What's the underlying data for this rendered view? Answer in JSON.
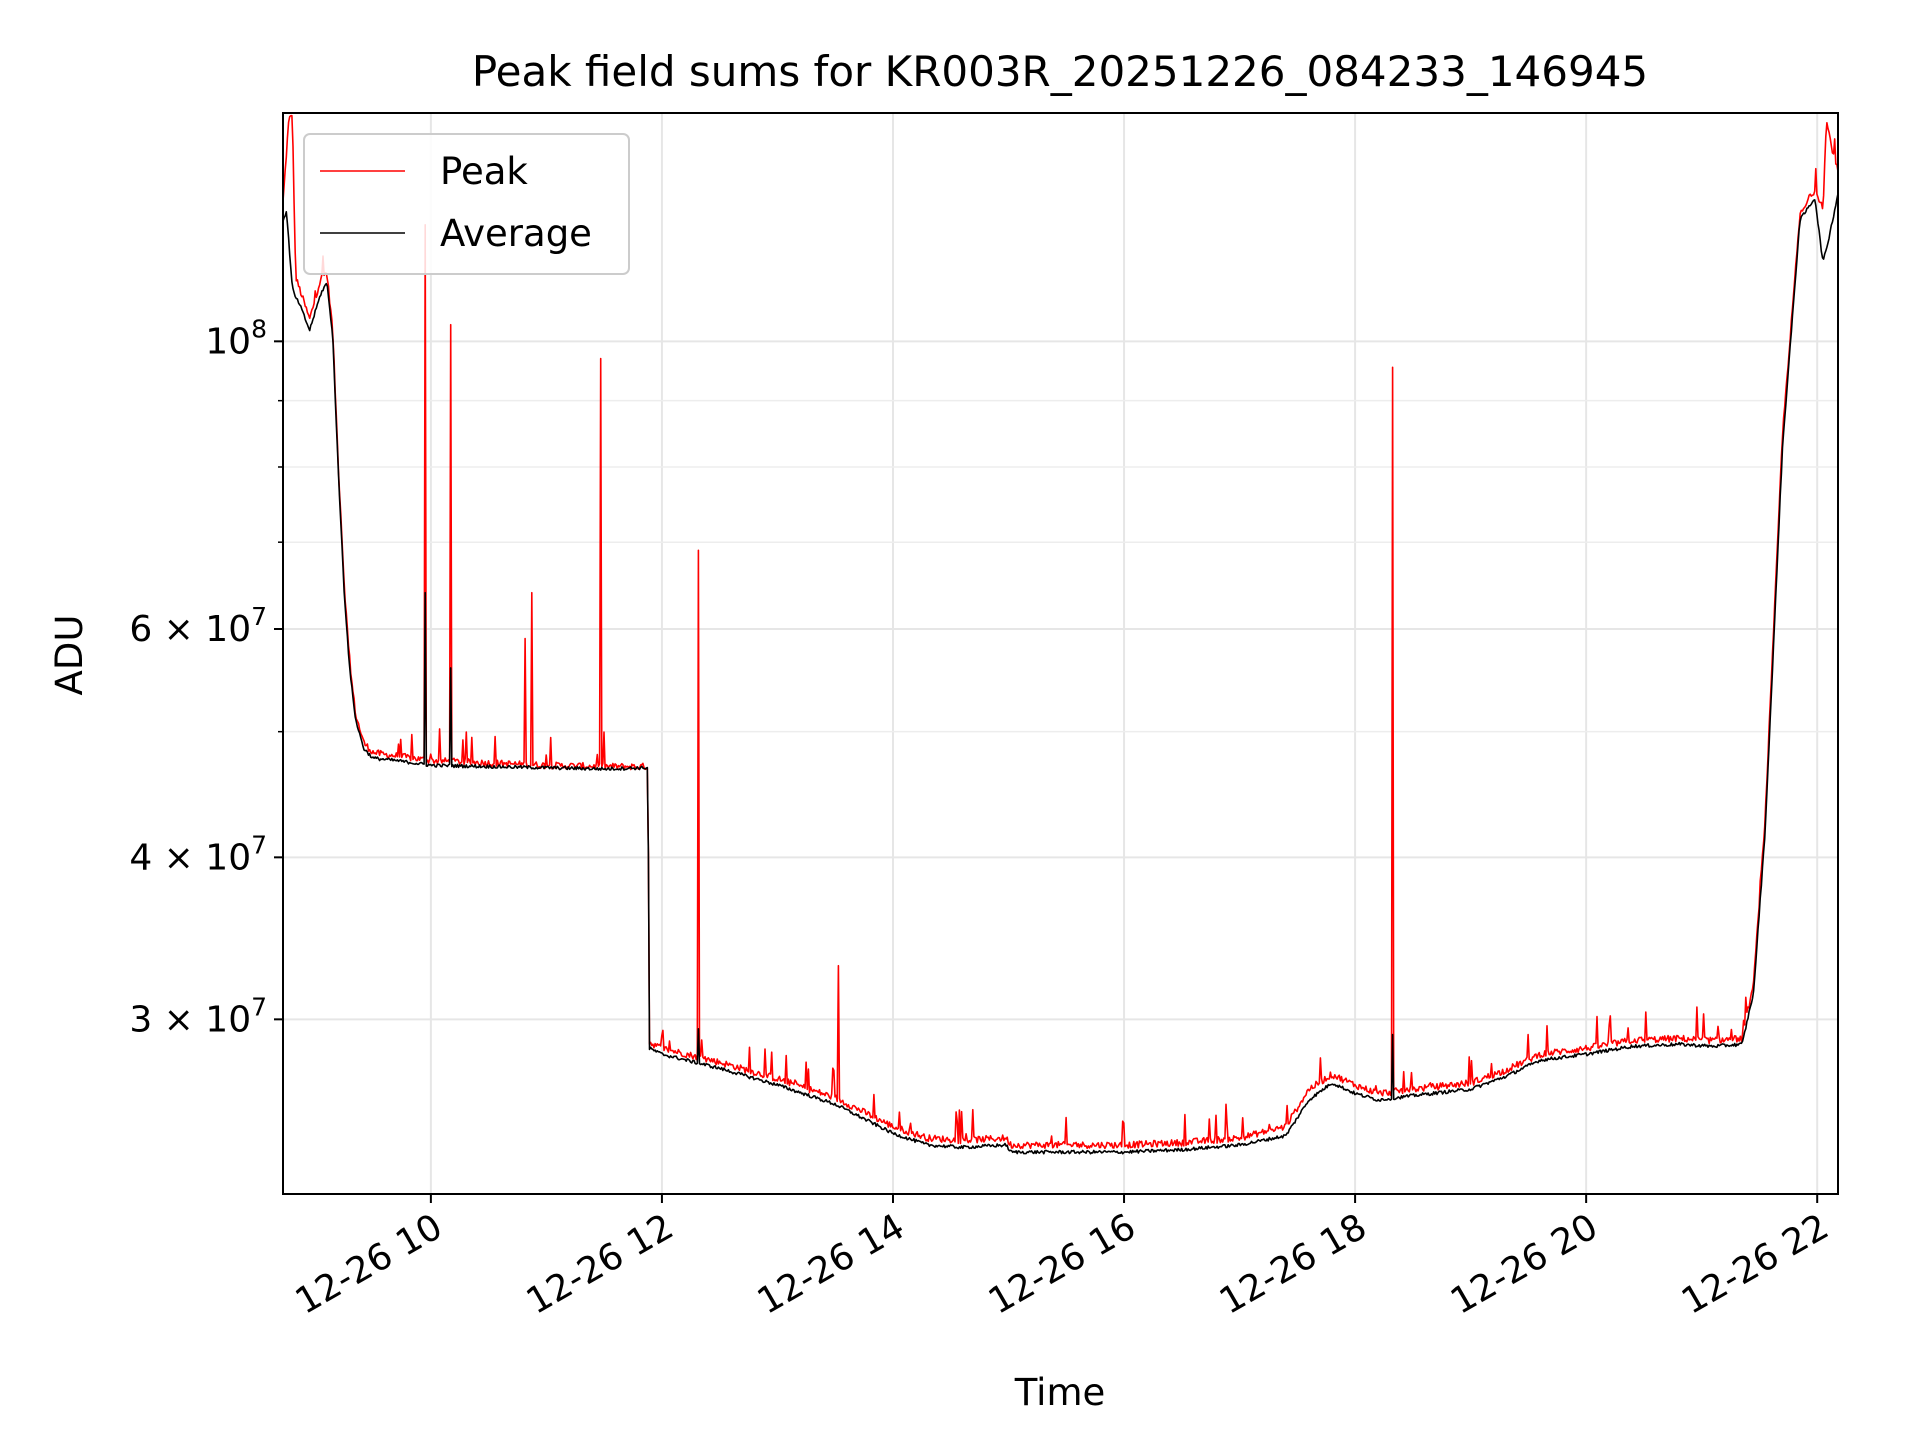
{
  "chart_data": {
    "type": "line",
    "title": "Peak field sums for KR003R_20251226_084233_146945",
    "xlabel": "Time",
    "ylabel": "ADU",
    "y_scale": "log",
    "ylim": [
      22000000,
      150000000
    ],
    "x_unit": "hours since 12-26 00:00",
    "xlim": [
      8.72,
      22.18
    ],
    "grid": true,
    "legend_position": "upper-left",
    "x_ticks": [
      {
        "value": 10,
        "label": "12-26 10"
      },
      {
        "value": 12,
        "label": "12-26 12"
      },
      {
        "value": 14,
        "label": "12-26 14"
      },
      {
        "value": 16,
        "label": "12-26 16"
      },
      {
        "value": 18,
        "label": "12-26 18"
      },
      {
        "value": 20,
        "label": "12-26 20"
      },
      {
        "value": 22,
        "label": "12-26 22"
      }
    ],
    "y_ticks": [
      {
        "value": 100000000,
        "base": "10",
        "exp": "8"
      },
      {
        "value": 60000000,
        "base": "6 × 10",
        "exp": "7"
      },
      {
        "value": 40000000,
        "base": "4 × 10",
        "exp": "7"
      },
      {
        "value": 30000000,
        "base": "3 × 10",
        "exp": "7"
      }
    ],
    "y_minor_ticks": [
      50000000,
      70000000,
      80000000,
      90000000
    ],
    "series": [
      {
        "name": "Peak",
        "color": "#ff0000",
        "x": [
          8.72,
          8.77,
          8.8,
          8.83,
          8.86,
          8.95,
          9.05,
          9.1,
          9.15,
          9.2,
          9.25,
          9.3,
          9.35,
          9.42,
          9.5,
          9.6,
          9.7,
          9.85,
          10.0,
          10.5,
          11.0,
          11.5,
          11.88,
          11.89,
          12.0,
          12.5,
          13.0,
          13.5,
          14.0,
          14.3,
          14.6,
          14.98,
          15.02,
          15.5,
          16.0,
          16.5,
          17.0,
          17.4,
          17.6,
          17.8,
          18.0,
          18.2,
          18.5,
          19.0,
          19.3,
          19.6,
          20.0,
          20.4,
          20.8,
          21.1,
          21.35,
          21.45,
          21.55,
          21.7,
          21.85,
          21.98,
          22.05,
          22.08,
          22.12,
          22.18
        ],
        "y": [
          128000000,
          148000000,
          150000000,
          112000000,
          110000000,
          104000000,
          112000000,
          113000000,
          102000000,
          80000000,
          65000000,
          56000000,
          51500000,
          49000000,
          48200000,
          48000000,
          47900000,
          47700000,
          47500000,
          47300000,
          47100000,
          47000000,
          47000000,
          28800000,
          28500000,
          27800000,
          27000000,
          26100000,
          24800000,
          24300000,
          24200000,
          24300000,
          24000000,
          24000000,
          24000000,
          24100000,
          24300000,
          24800000,
          26500000,
          27200000,
          26700000,
          26300000,
          26500000,
          26800000,
          27400000,
          28200000,
          28500000,
          28900000,
          29000000,
          28900000,
          29000000,
          32000000,
          43000000,
          85000000,
          125000000,
          131000000,
          127000000,
          148000000,
          142000000,
          135000000
        ],
        "spikes": [
          {
            "x": 9.95,
            "y": 123000000
          },
          {
            "x": 10.17,
            "y": 103000000
          },
          {
            "x": 10.82,
            "y": 59000000
          },
          {
            "x": 10.87,
            "y": 64000000
          },
          {
            "x": 11.47,
            "y": 97000000
          },
          {
            "x": 12.32,
            "y": 69000000
          },
          {
            "x": 13.53,
            "y": 33000000
          },
          {
            "x": 18.32,
            "y": 95500000
          },
          {
            "x": 12.95,
            "y": 28300000
          },
          {
            "x": 13.25,
            "y": 27800000
          },
          {
            "x": 15.5,
            "y": 25200000
          },
          {
            "x": 16.8,
            "y": 25300000
          },
          {
            "x": 19.5,
            "y": 29200000
          },
          {
            "x": 20.2,
            "y": 29700000
          }
        ]
      },
      {
        "name": "Average",
        "color": "#000000",
        "x": [
          8.72,
          8.75,
          8.8,
          8.83,
          8.86,
          8.95,
          9.05,
          9.1,
          9.15,
          9.2,
          9.25,
          9.3,
          9.35,
          9.42,
          9.5,
          9.6,
          9.7,
          9.85,
          10.0,
          10.5,
          11.0,
          11.5,
          11.88,
          11.89,
          12.0,
          12.5,
          13.0,
          13.5,
          14.0,
          14.3,
          14.6,
          14.98,
          15.02,
          15.5,
          16.0,
          16.5,
          17.0,
          17.4,
          17.6,
          17.8,
          18.0,
          18.2,
          18.5,
          19.0,
          19.3,
          19.6,
          20.0,
          20.4,
          20.8,
          21.1,
          21.35,
          21.45,
          21.55,
          21.7,
          21.85,
          21.98,
          22.05,
          22.1,
          22.18
        ],
        "y": [
          124000000,
          126000000,
          110000000,
          108000000,
          107000000,
          102000000,
          109000000,
          111000000,
          101000000,
          79000000,
          64000000,
          55500000,
          51000000,
          48500000,
          47700000,
          47600000,
          47500000,
          47300000,
          47100000,
          47000000,
          46900000,
          46800000,
          46900000,
          28500000,
          28200000,
          27500000,
          26700000,
          25800000,
          24500000,
          24000000,
          23900000,
          24000000,
          23700000,
          23700000,
          23700000,
          23800000,
          24000000,
          24400000,
          26000000,
          26800000,
          26300000,
          26000000,
          26200000,
          26500000,
          27100000,
          27900000,
          28200000,
          28600000,
          28700000,
          28600000,
          28700000,
          31500000,
          42000000,
          83000000,
          124000000,
          129000000,
          115000000,
          120000000,
          130000000
        ],
        "spikes": [
          {
            "x": 9.95,
            "y": 64000000
          },
          {
            "x": 10.17,
            "y": 56000000
          },
          {
            "x": 12.32,
            "y": 29500000
          },
          {
            "x": 18.32,
            "y": 29200000
          }
        ]
      }
    ]
  }
}
